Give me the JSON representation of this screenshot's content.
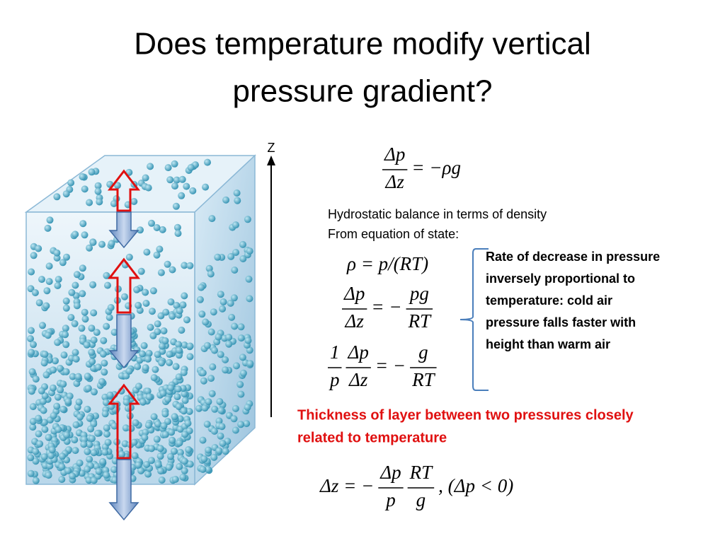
{
  "title": [
    "Does temperature modify vertical",
    "pressure gradient?"
  ],
  "axis_label": "Z",
  "equations": [
    [
      {
        "num": "Δp",
        "den": "Δz"
      },
      "= −ρg"
    ],
    [
      "ρ = p/(RT)"
    ],
    [
      {
        "num": "Δp",
        "den": "Δz"
      },
      "= −",
      {
        "num": "pg",
        "den": "RT"
      }
    ],
    [
      {
        "num": "1",
        "den": "p"
      },
      {
        "num": "Δp",
        "den": "Δz"
      },
      "= −",
      {
        "num": "g",
        "den": "RT"
      }
    ],
    [
      "Δz = −",
      {
        "num": "Δp",
        "den": "p"
      },
      {
        "num": "RT",
        "den": "g"
      },
      ", (Δp < 0)"
    ]
  ],
  "notes": [
    "Hydrostatic balance in terms of density",
    "From equation of state:"
  ],
  "callout": [
    "Rate of decrease in pressure",
    "inversely proportional to",
    "temperature: cold air",
    "pressure falls faster with",
    "height than warm air"
  ],
  "highlight": [
    "Thickness of layer between two pressures closely",
    "related to temperature"
  ]
}
